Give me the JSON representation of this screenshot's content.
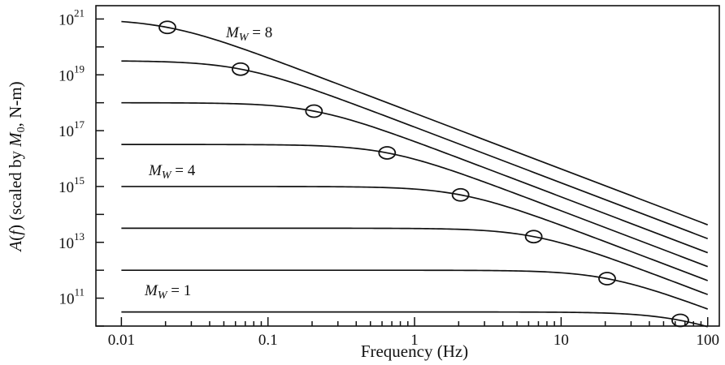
{
  "chart_data": {
    "type": "line",
    "title": "",
    "xlabel": "Frequency (Hz)",
    "ylabel": "A(f) (scaled by M0, N-m)",
    "x_scale": "log",
    "y_scale": "log",
    "xlim": [
      0.0067,
      120
    ],
    "ylim": [
      10000000000.0,
      3e+21
    ],
    "x_ticks": [
      {
        "value": 0.01,
        "label": "0.01"
      },
      {
        "value": 0.1,
        "label": "0.1"
      },
      {
        "value": 1,
        "label": "1"
      },
      {
        "value": 10,
        "label": "10"
      },
      {
        "value": 100,
        "label": "100"
      }
    ],
    "y_ticks": [
      {
        "value": 100000000000.0,
        "base": "10",
        "exp": "11"
      },
      {
        "value": 10000000000000.0,
        "base": "10",
        "exp": "13"
      },
      {
        "value": 1000000000000000.0,
        "base": "10",
        "exp": "15"
      },
      {
        "value": 1e+17,
        "base": "10",
        "exp": "17"
      },
      {
        "value": 1e+19,
        "base": "10",
        "exp": "19"
      },
      {
        "value": 1e+21,
        "base": "10",
        "exp": "21"
      }
    ],
    "annotations": [
      {
        "text": "Mw = 8",
        "series": 7
      },
      {
        "text": "Mw = 4",
        "series": 3
      },
      {
        "text": "Mw = 1",
        "series": 0
      }
    ],
    "series": [
      {
        "mw": 1,
        "plateau": 32000000000.0,
        "corner_hz": 65.0
      },
      {
        "mw": 2,
        "plateau": 1000000000000.0,
        "corner_hz": 20.6
      },
      {
        "mw": 3,
        "plateau": 32000000000000.0,
        "corner_hz": 6.5
      },
      {
        "mw": 4,
        "plateau": 1000000000000000.0,
        "corner_hz": 2.06
      },
      {
        "mw": 5,
        "plateau": 3.2e+16,
        "corner_hz": 0.65
      },
      {
        "mw": 6,
        "plateau": 1e+18,
        "corner_hz": 0.206
      },
      {
        "mw": 7,
        "plateau": 3.2e+19,
        "corner_hz": 0.065
      },
      {
        "mw": 8,
        "plateau": 1e+21,
        "corner_hz": 0.0206
      }
    ],
    "marker": "open-circle at corner frequency",
    "grid": false
  }
}
